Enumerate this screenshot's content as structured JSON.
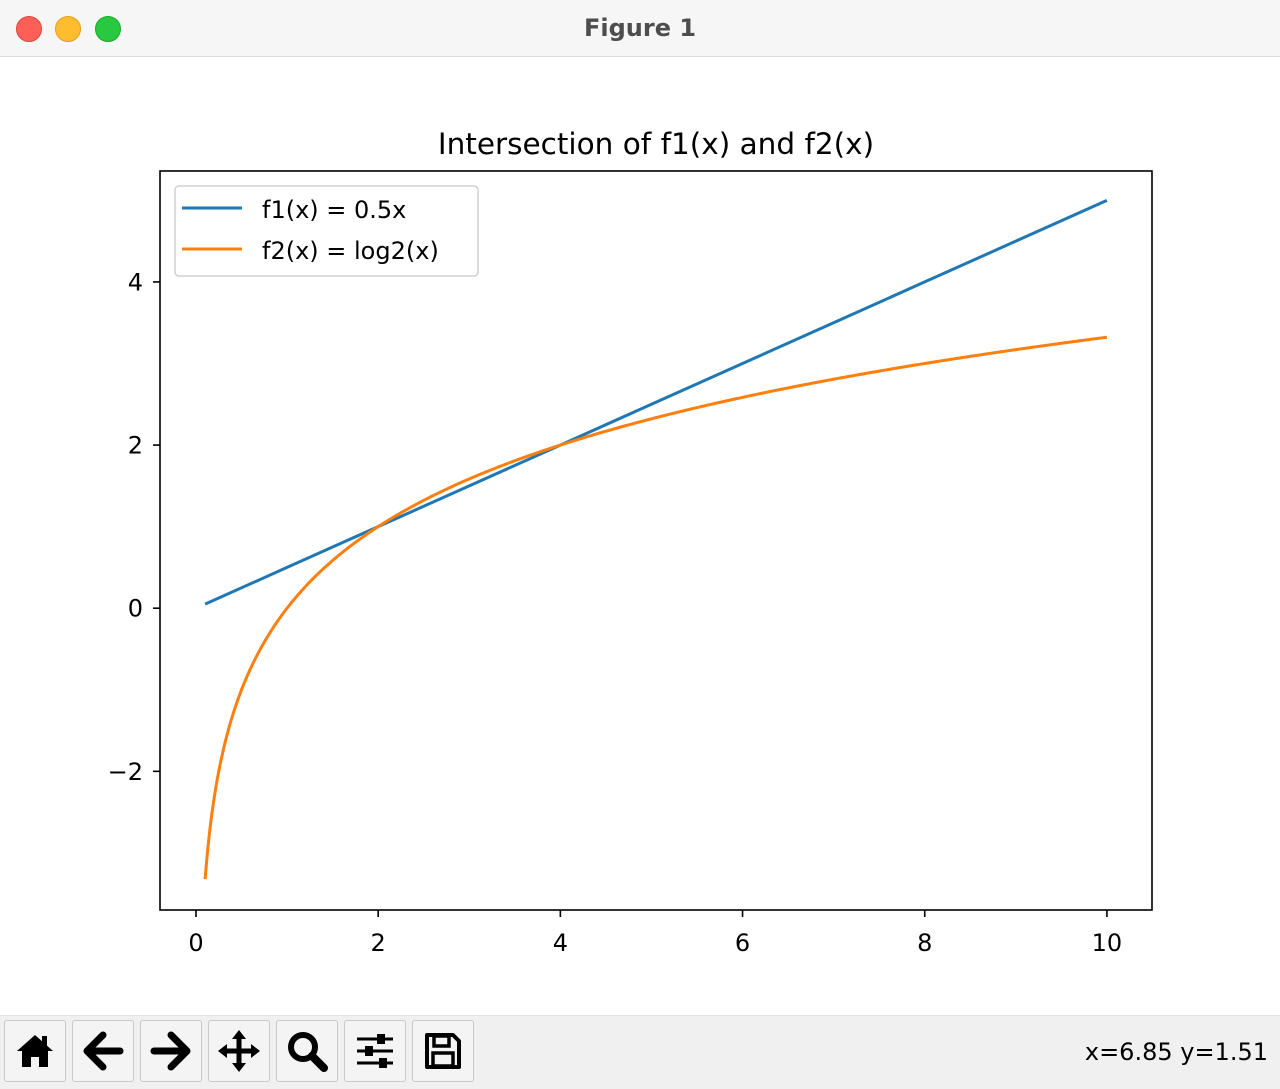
{
  "window": {
    "title": "Figure 1"
  },
  "toolbar": {
    "buttons": [
      {
        "name": "home-button",
        "icon": "home-icon",
        "label": "Home"
      },
      {
        "name": "back-button",
        "icon": "arrow-left-icon",
        "label": "Back"
      },
      {
        "name": "forward-button",
        "icon": "arrow-right-icon",
        "label": "Forward"
      },
      {
        "name": "pan-button",
        "icon": "move-icon",
        "label": "Pan"
      },
      {
        "name": "zoom-button",
        "icon": "magnifier-icon",
        "label": "Zoom"
      },
      {
        "name": "configure-subplots-button",
        "icon": "sliders-icon",
        "label": "Subplots"
      },
      {
        "name": "save-button",
        "icon": "floppy-disk-icon",
        "label": "Save"
      }
    ],
    "coords": "x=6.85 y=1.51"
  },
  "chart_data": {
    "type": "line",
    "title": "Intersection of f1(x) and f2(x)",
    "xlabel": "",
    "ylabel": "",
    "xlim": [
      -0.395,
      10.495
    ],
    "ylim": [
      -3.7,
      5.36
    ],
    "xticks": [
      0,
      2,
      4,
      6,
      8,
      10
    ],
    "yticks": [
      -2,
      0,
      2,
      4
    ],
    "grid": false,
    "legend": "upper-left",
    "series": [
      {
        "name": "f1(x) = 0.5x",
        "color": "#1f77b4",
        "x": [
          0.1,
          1,
          2,
          3,
          4,
          5,
          6,
          7,
          8,
          9,
          10
        ],
        "y": [
          0.05,
          0.5,
          1,
          1.5,
          2,
          2.5,
          3,
          3.5,
          4,
          4.5,
          5
        ]
      },
      {
        "name": "f2(x) = log2(x)",
        "color": "#ff7f0e",
        "x": [
          0.1,
          0.15,
          0.2,
          0.25,
          0.3,
          0.4,
          0.5,
          0.6,
          0.7,
          0.8,
          1,
          1.25,
          1.5,
          1.75,
          2,
          2.5,
          3,
          3.5,
          4,
          4.5,
          5,
          6,
          7,
          8,
          9,
          10
        ],
        "y": [
          -3.32,
          -2.74,
          -2.32,
          -2.0,
          -1.74,
          -1.32,
          -1.0,
          -0.74,
          -0.51,
          -0.32,
          0.0,
          0.32,
          0.58,
          0.81,
          1.0,
          1.32,
          1.58,
          1.81,
          2.0,
          2.17,
          2.32,
          2.58,
          2.81,
          3.0,
          3.17,
          3.32
        ]
      }
    ]
  }
}
